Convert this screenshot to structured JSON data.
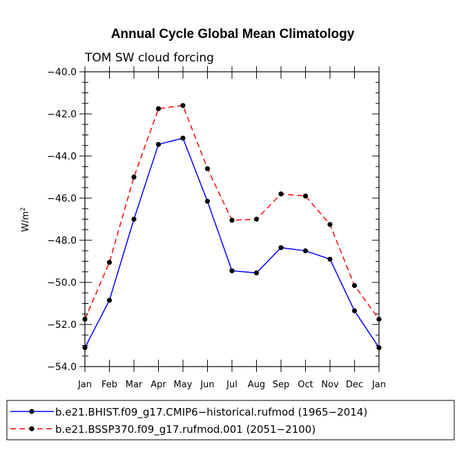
{
  "chart_data": {
    "type": "line",
    "title": "Annual Cycle Global Mean Climatology",
    "subtitle": "TOM SW cloud forcing",
    "xlabel": "",
    "ylabel": "W/m",
    "ylabel_superscript": "2",
    "ylim": [
      -54.0,
      -40.0
    ],
    "yticks": [
      -54.0,
      -52.0,
      -50.0,
      -48.0,
      -46.0,
      -44.0,
      -42.0,
      -40.0
    ],
    "ytick_labels": [
      "−54.0",
      "−52.0",
      "−50.0",
      "−48.0",
      "−46.0",
      "−44.0",
      "−42.0",
      "−40.0"
    ],
    "categories": [
      "Jan",
      "Feb",
      "Mar",
      "Apr",
      "May",
      "Jun",
      "Jul",
      "Aug",
      "Sep",
      "Oct",
      "Nov",
      "Dec",
      "Jan"
    ],
    "series": [
      {
        "name": "b.e21.BHIST.f09_g17.CMIP6−historical.rufmod (1965−2014)",
        "color": "#0000ff",
        "dash": "solid",
        "values": [
          -53.1,
          -50.85,
          -47.0,
          -43.45,
          -43.15,
          -46.15,
          -49.45,
          -49.55,
          -48.35,
          -48.5,
          -48.9,
          -51.35,
          -53.1
        ]
      },
      {
        "name": "b.e21.BSSP370.f09_g17.rufmod.001 (2051−2100)",
        "color": "#ff0000",
        "dash": "dashed",
        "values": [
          -51.75,
          -49.05,
          -45.0,
          -41.75,
          -41.6,
          -44.6,
          -47.05,
          -47.0,
          -45.8,
          -45.9,
          -47.25,
          -50.15,
          -51.75
        ]
      }
    ],
    "grid": false,
    "legend_position": "bottom"
  }
}
